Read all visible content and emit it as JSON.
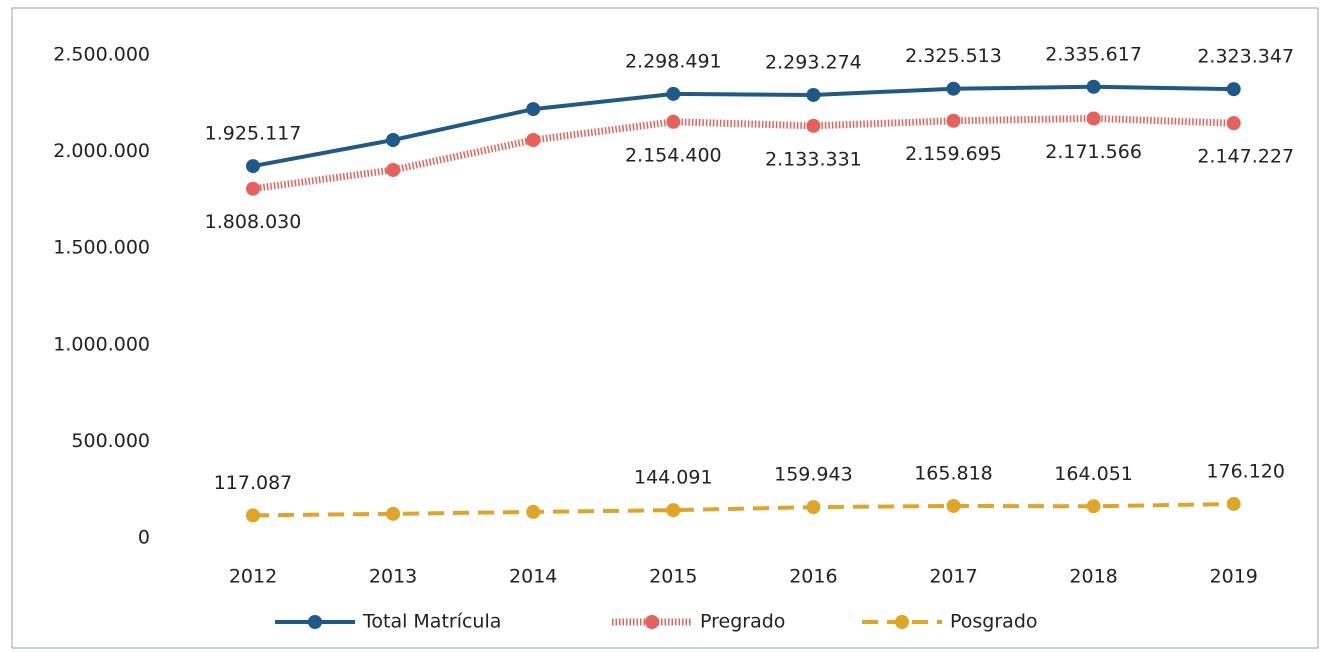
{
  "chart_data": {
    "type": "line",
    "categories": [
      "2012",
      "2013",
      "2014",
      "2015",
      "2016",
      "2017",
      "2018",
      "2019"
    ],
    "series": [
      {
        "name": "Total Matrícula",
        "color": "#1d5a8a",
        "style": "solid",
        "values": [
          1925117,
          2060000,
          2220000,
          2298491,
          2293274,
          2325513,
          2335617,
          2323347
        ],
        "value_labels": [
          "1.925.117",
          null,
          null,
          "2.298.491",
          "2.293.274",
          "2.325.513",
          "2.335.617",
          "2.323.347"
        ]
      },
      {
        "name": "Pregrado",
        "color": "#e8605a",
        "style": "dotted",
        "values": [
          1808030,
          1905000,
          2060000,
          2154400,
          2133331,
          2159695,
          2171566,
          2147227
        ],
        "value_labels": [
          "1.808.030",
          null,
          null,
          "2.154.400",
          "2.133.331",
          "2.159.695",
          "2.171.566",
          "2.147.227"
        ]
      },
      {
        "name": "Posgrado",
        "color": "#e0a526",
        "style": "dashed",
        "values": [
          117087,
          125000,
          135000,
          144091,
          159943,
          165818,
          164051,
          176120
        ],
        "value_labels": [
          "117.087",
          null,
          null,
          "144.091",
          "159.943",
          "165.818",
          "164.051",
          "176.120"
        ]
      }
    ],
    "ylim": [
      0,
      2500000
    ],
    "yticks": [
      0,
      {
        "value": 500000,
        "label": "500.000"
      },
      {
        "value": 1000000,
        "label": "1.000.000"
      },
      {
        "value": 1500000,
        "label": "1.500.000"
      },
      {
        "value": 2000000,
        "label": "2.000.000"
      },
      {
        "value": 2500000,
        "label": "2.500.000"
      }
    ],
    "legend": "bottom"
  }
}
